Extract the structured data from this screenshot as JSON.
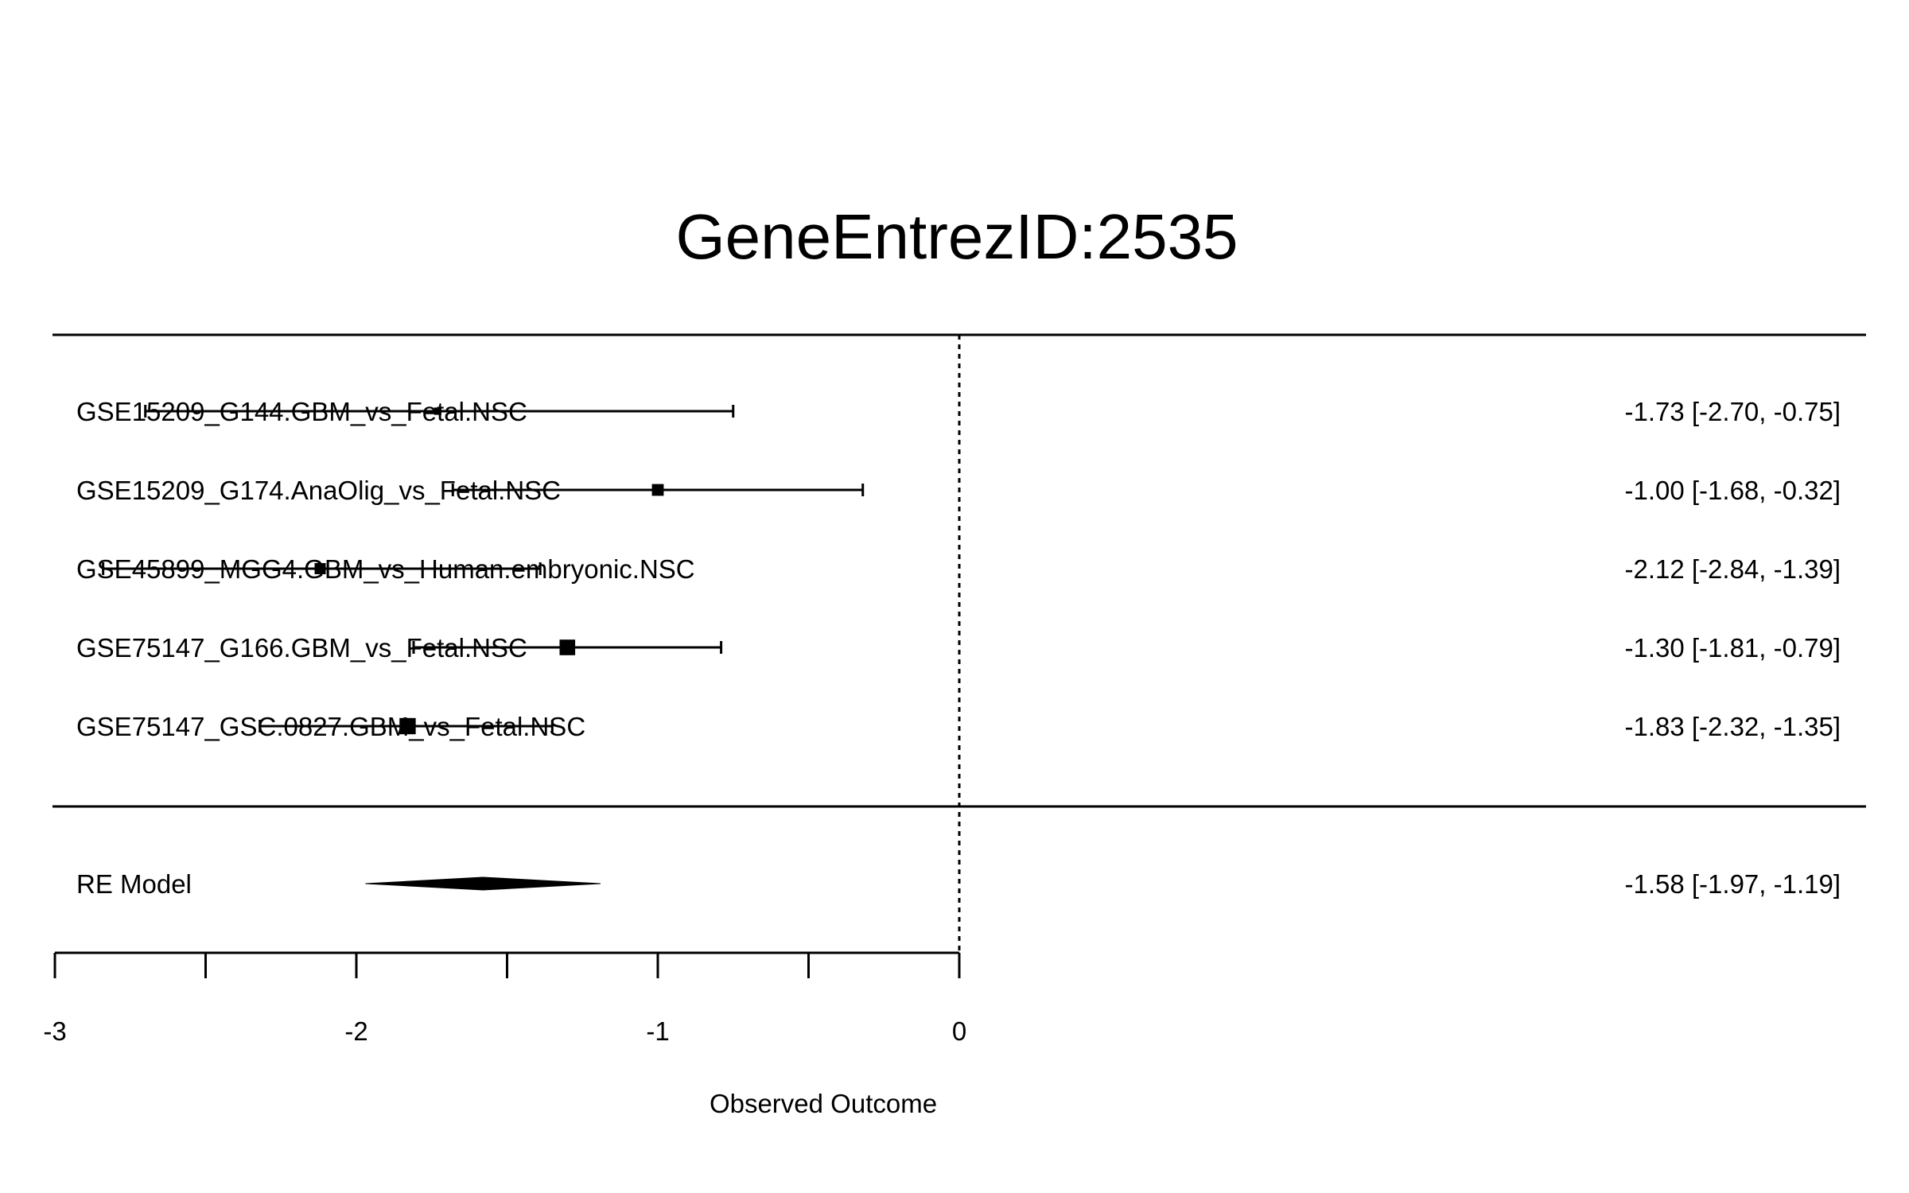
{
  "chart_data": {
    "type": "forest",
    "title": "GeneEntrezID:2535",
    "xlabel": "Observed Outcome",
    "xlim": [
      -3,
      0
    ],
    "xticks": [
      -3,
      -2,
      -1,
      0
    ],
    "minor_tick_step": 0.5,
    "reference_line": 0,
    "studies": [
      {
        "name": "GSE15209_G144.GBM_vs_Fetal.NSC",
        "est": -1.73,
        "lo": -2.7,
        "hi": -0.75,
        "text": "-1.73 [-2.70, -0.75]",
        "weight": 0.2
      },
      {
        "name": "GSE15209_G174.AnaOlig_vs_Fetal.NSC",
        "est": -1.0,
        "lo": -1.68,
        "hi": -0.32,
        "text": "-1.00 [-1.68, -0.32]",
        "weight": 0.55
      },
      {
        "name": "GSE45899_MGG4.GBM_vs_Human.embryonic.NSC",
        "est": -2.12,
        "lo": -2.84,
        "hi": -1.39,
        "text": "-2.12 [-2.84, -1.39]",
        "weight": 0.5
      },
      {
        "name": "GSE75147_G166.GBM_vs_Fetal.NSC",
        "est": -1.3,
        "lo": -1.81,
        "hi": -0.79,
        "text": "-1.30 [-1.81, -0.79]",
        "weight": 0.85
      },
      {
        "name": "GSE75147_GSC.0827.GBM_vs_Fetal.NSC",
        "est": -1.83,
        "lo": -2.32,
        "hi": -1.35,
        "text": "-1.83 [-2.32, -1.35]",
        "weight": 0.9
      }
    ],
    "summary": {
      "name": "RE Model",
      "est": -1.58,
      "lo": -1.97,
      "hi": -1.19,
      "text": "-1.58 [-1.97, -1.19]"
    }
  }
}
